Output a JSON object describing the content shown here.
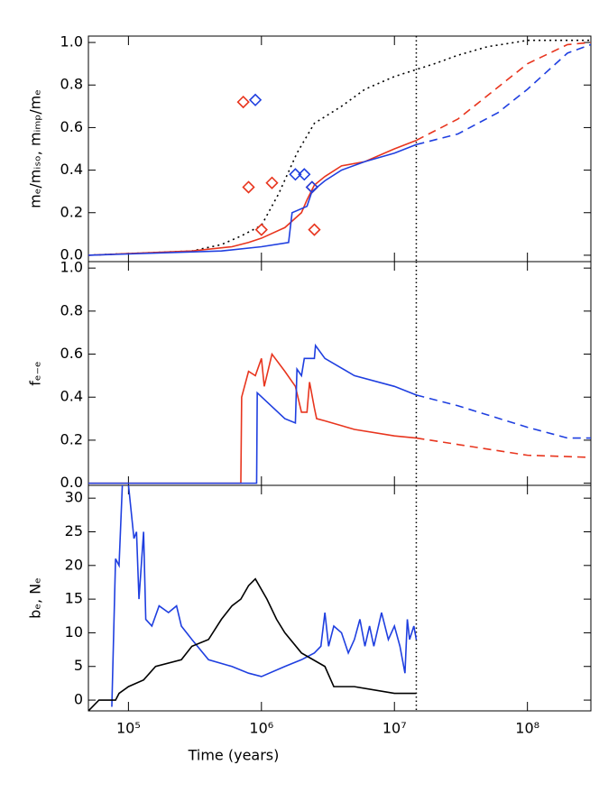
{
  "chart_data": [
    {
      "type": "line",
      "ylabel": "mₑ/mᵢₛₒ, mᵢₘₚ/mₑ",
      "xlim": [
        50000,
        300000000
      ],
      "log_x": true,
      "ylim": [
        -0.03,
        1.03
      ],
      "yticks": [
        {
          "value": 0,
          "label": "0.0"
        },
        {
          "value": 0.2,
          "label": "0.2"
        },
        {
          "value": 0.4,
          "label": "0.4"
        },
        {
          "value": 0.6,
          "label": "0.6"
        },
        {
          "value": 0.8,
          "label": "0.8"
        },
        {
          "value": 1,
          "label": "1.0"
        }
      ],
      "vline": 14600000,
      "series": [
        {
          "color": "#000000",
          "dash": "dotted",
          "x": [
            50000,
            300000,
            500000,
            700000,
            1000000,
            1350000,
            1850000,
            2500000,
            4000000,
            6000000,
            10000000,
            20000000,
            30000000,
            50000000,
            80000000,
            100000000,
            300000000
          ],
          "values": [
            0,
            0.02,
            0.05,
            0.09,
            0.14,
            0.29,
            0.48,
            0.62,
            0.7,
            0.78,
            0.84,
            0.9,
            0.94,
            0.98,
            1.0,
            1.01,
            1.01
          ]
        },
        {
          "color": "#e8351e",
          "dash": "solid",
          "x": [
            50000,
            300000,
            600000,
            800000,
            1000000,
            1500000,
            2000000,
            2200000,
            2500000,
            3000000,
            4000000,
            6000000,
            10000000,
            14600000
          ],
          "values": [
            0,
            0.02,
            0.04,
            0.06,
            0.08,
            0.13,
            0.2,
            0.26,
            0.33,
            0.37,
            0.42,
            0.44,
            0.5,
            0.54
          ]
        },
        {
          "color": "#e8351e",
          "dash": "dashed",
          "x": [
            14600000,
            30000000,
            50000000,
            100000000,
            200000000,
            300000000
          ],
          "values": [
            0.54,
            0.64,
            0.75,
            0.9,
            0.99,
            1.0
          ]
        },
        {
          "color": "#1f3fe0",
          "dash": "solid",
          "x": [
            50000,
            500000,
            1000000,
            1600000,
            1700000,
            2200000,
            2400000,
            3000000,
            4000000,
            6000000,
            10000000,
            14600000
          ],
          "values": [
            0,
            0.02,
            0.04,
            0.06,
            0.2,
            0.23,
            0.3,
            0.35,
            0.4,
            0.44,
            0.48,
            0.52
          ]
        },
        {
          "color": "#1f3fe0",
          "dash": "dashed",
          "x": [
            14600000,
            30000000,
            60000000,
            100000000,
            200000000,
            300000000
          ],
          "values": [
            0.52,
            0.57,
            0.67,
            0.78,
            0.95,
            0.99
          ]
        },
        {
          "color": "#e8351e",
          "marker": "diamond",
          "x": [
            730000,
            800000,
            1200000,
            1000000,
            2500000,
            2400000
          ],
          "values": [
            0.72,
            0.32,
            0.34,
            0.12,
            0.12,
            0.32
          ]
        },
        {
          "color": "#1f3fe0",
          "marker": "diamond",
          "x": [
            900000,
            1800000,
            2100000,
            2400000
          ],
          "values": [
            0.73,
            0.38,
            0.38,
            0.32
          ]
        }
      ]
    },
    {
      "type": "line",
      "ylabel": "fₑ₋ₑ",
      "xlim": [
        50000,
        300000000
      ],
      "log_x": true,
      "ylim": [
        -0.01,
        1.03
      ],
      "yticks": [
        {
          "value": 0,
          "label": "0.0"
        },
        {
          "value": 0.2,
          "label": "0.2"
        },
        {
          "value": 0.4,
          "label": "0.4"
        },
        {
          "value": 0.6,
          "label": "0.6"
        },
        {
          "value": 0.8,
          "label": "0.8"
        },
        {
          "value": 1,
          "label": "1.0"
        }
      ],
      "vline": 14600000,
      "series": [
        {
          "color": "#e8351e",
          "dash": "solid",
          "x": [
            50000,
            700000,
            710000,
            800000,
            900000,
            1000000,
            1050000,
            1200000,
            1500000,
            1800000,
            2000000,
            2200000,
            2300000,
            2500000,
            2600000,
            3000000,
            5000000,
            10000000,
            14600000
          ],
          "values": [
            0,
            0,
            0.4,
            0.52,
            0.5,
            0.58,
            0.45,
            0.6,
            0.52,
            0.45,
            0.33,
            0.33,
            0.47,
            0.35,
            0.3,
            0.29,
            0.25,
            0.22,
            0.21
          ]
        },
        {
          "color": "#e8351e",
          "dash": "dashed",
          "x": [
            14600000,
            30000000,
            100000000,
            300000000
          ],
          "values": [
            0.21,
            0.18,
            0.13,
            0.12
          ]
        },
        {
          "color": "#1f3fe0",
          "dash": "solid",
          "x": [
            50000,
            920000,
            930000,
            1500000,
            1800000,
            1850000,
            2000000,
            2100000,
            2500000,
            2550000,
            3000000,
            5000000,
            10000000,
            14600000
          ],
          "values": [
            0,
            0,
            0.42,
            0.3,
            0.28,
            0.53,
            0.5,
            0.58,
            0.58,
            0.64,
            0.58,
            0.5,
            0.45,
            0.41
          ]
        },
        {
          "color": "#1f3fe0",
          "dash": "dashed",
          "x": [
            14600000,
            30000000,
            100000000,
            200000000,
            300000000
          ],
          "values": [
            0.41,
            0.36,
            0.26,
            0.21,
            0.21
          ]
        }
      ]
    },
    {
      "type": "line",
      "ylabel": "bₑ, Nₑ",
      "xlabel": "Time (years)",
      "xlim": [
        50000,
        300000000
      ],
      "log_x": true,
      "ylim": [
        -1.6,
        31.9
      ],
      "yticks": [
        0,
        5,
        10,
        15,
        20,
        25,
        30
      ],
      "xticks": [
        {
          "value": 100000,
          "label": "10⁵"
        },
        {
          "value": 1000000,
          "label": "10⁶"
        },
        {
          "value": 10000000,
          "label": "10⁷"
        },
        {
          "value": 100000000,
          "label": "10⁸"
        }
      ],
      "vline": 14600000,
      "series": [
        {
          "color": "#1f3fe0",
          "dash": "solid",
          "x": [
            75000,
            80000,
            85000,
            90000,
            100000,
            110000,
            115000,
            120000,
            130000,
            135000,
            150000,
            170000,
            200000,
            230000,
            250000,
            300000,
            400000,
            600000,
            800000,
            1000000,
            1500000,
            2000000,
            2500000,
            2800000,
            3000000,
            3200000,
            3500000,
            4000000,
            4500000,
            5000000,
            5500000,
            6000000,
            6500000,
            7000000,
            8000000,
            9000000,
            10000000,
            11000000,
            12000000,
            12500000,
            13000000,
            14000000,
            14600000
          ],
          "values": [
            -1,
            21,
            20,
            32,
            32,
            24,
            25,
            15,
            25,
            12,
            11,
            14,
            13,
            14,
            11,
            9,
            6,
            5,
            4,
            3.5,
            5,
            6,
            7,
            8,
            13,
            8,
            11,
            10,
            7,
            9,
            12,
            8,
            11,
            8,
            13,
            9,
            11,
            8,
            4,
            12,
            9,
            11,
            9
          ]
        },
        {
          "color": "#000000",
          "dash": "solid",
          "x": [
            50000,
            60000,
            80000,
            85000,
            100000,
            130000,
            160000,
            250000,
            300000,
            400000,
            500000,
            600000,
            700000,
            800000,
            900000,
            1100000,
            1300000,
            1500000,
            2000000,
            3000000,
            3500000,
            5000000,
            10000000,
            14600000
          ],
          "values": [
            -1.6,
            0,
            0,
            1,
            2,
            3,
            5,
            6,
            8,
            9,
            12,
            14,
            15,
            17,
            18,
            15,
            12,
            10,
            7,
            5,
            2,
            2,
            1,
            1
          ]
        }
      ]
    }
  ]
}
